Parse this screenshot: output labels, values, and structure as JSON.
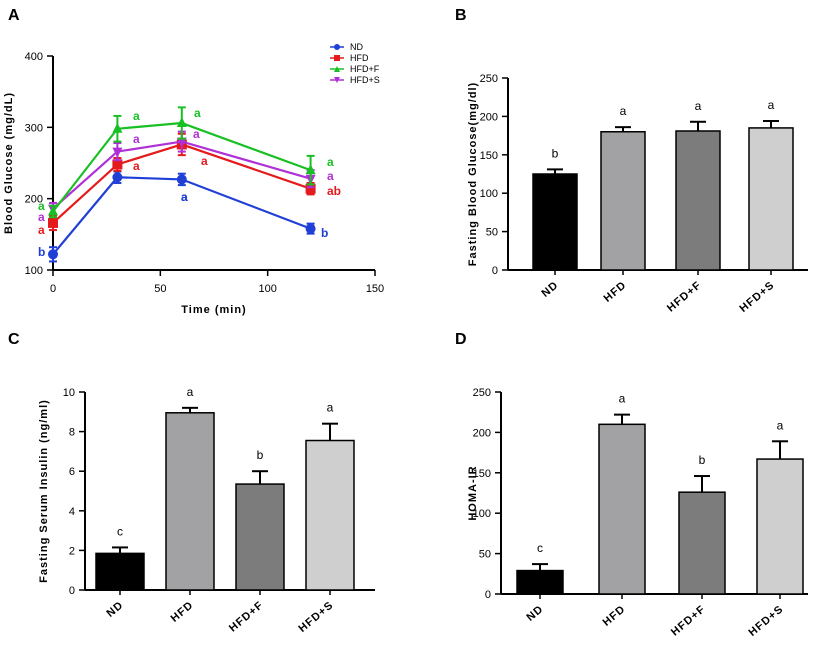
{
  "chart_data": [
    {
      "panel": "A",
      "type": "line",
      "xlabel": "Time (min)",
      "ylabel": "Blood Glucose (mg/dL)",
      "xlim": [
        0,
        150
      ],
      "ylim": [
        100,
        400
      ],
      "xticks": [
        0,
        50,
        100,
        150
      ],
      "yticks": [
        100,
        200,
        300,
        400
      ],
      "x": [
        0,
        30,
        60,
        120
      ],
      "series": [
        {
          "name": "ND",
          "color": "#1f3fd6",
          "marker": "circle",
          "values": [
            122,
            230,
            227,
            158
          ],
          "errors": [
            10,
            8,
            8,
            7
          ],
          "labels": [
            "b",
            "a",
            "a",
            "b"
          ]
        },
        {
          "name": "HFD",
          "color": "#e41a1c",
          "marker": "square",
          "values": [
            166,
            248,
            276,
            214
          ],
          "errors": [
            10,
            9,
            15,
            8
          ],
          "labels": [
            "a",
            "a",
            "a",
            "ab"
          ]
        },
        {
          "name": "HFD+F",
          "color": "#18c024",
          "marker": "triangle-up",
          "values": [
            182,
            298,
            306,
            240
          ],
          "errors": [
            8,
            18,
            22,
            20
          ],
          "labels": [
            "a",
            "a",
            "a",
            "a"
          ]
        },
        {
          "name": "HFD+S",
          "color": "#b030d8",
          "marker": "triangle-down",
          "values": [
            186,
            266,
            280,
            228
          ],
          "errors": [
            8,
            12,
            14,
            12
          ],
          "labels": [
            "a",
            "a",
            "a",
            "a"
          ]
        }
      ]
    },
    {
      "panel": "B",
      "type": "bar",
      "ylabel": "Fasting Blood Glucose(mg/dl)",
      "ylim": [
        0,
        250
      ],
      "yticks": [
        0,
        50,
        100,
        150,
        200,
        250
      ],
      "categories": [
        "ND",
        "HFD",
        "HFD+F",
        "HFD+S"
      ],
      "values": [
        125,
        180,
        181,
        185
      ],
      "errors": [
        6,
        6,
        12,
        9
      ],
      "labels": [
        "b",
        "a",
        "a",
        "a"
      ],
      "colors": [
        "#000000",
        "#a2a2a4",
        "#7c7c7c",
        "#cfcfcf"
      ]
    },
    {
      "panel": "C",
      "type": "bar",
      "ylabel": "Fasting Serum Insulin (ng/ml)",
      "ylim": [
        0,
        10
      ],
      "yticks": [
        0,
        2,
        4,
        6,
        8,
        10
      ],
      "categories": [
        "ND",
        "HFD",
        "HFD+F",
        "HFD+S"
      ],
      "values": [
        1.85,
        8.95,
        5.35,
        7.55
      ],
      "errors": [
        0.3,
        0.25,
        0.65,
        0.85
      ],
      "labels": [
        "c",
        "a",
        "b",
        "a"
      ],
      "colors": [
        "#000000",
        "#a2a2a4",
        "#7c7c7c",
        "#cfcfcf"
      ]
    },
    {
      "panel": "D",
      "type": "bar",
      "ylabel": "HOMA-IR",
      "ylim": [
        0,
        250
      ],
      "yticks": [
        0,
        50,
        100,
        150,
        200,
        250
      ],
      "categories": [
        "ND",
        "HFD",
        "HFD+F",
        "HFD+S"
      ],
      "values": [
        29,
        210,
        126,
        167
      ],
      "errors": [
        8,
        12,
        20,
        22
      ],
      "labels": [
        "c",
        "a",
        "b",
        "a"
      ],
      "colors": [
        "#000000",
        "#a2a2a4",
        "#7c7c7c",
        "#cfcfcf"
      ]
    }
  ]
}
